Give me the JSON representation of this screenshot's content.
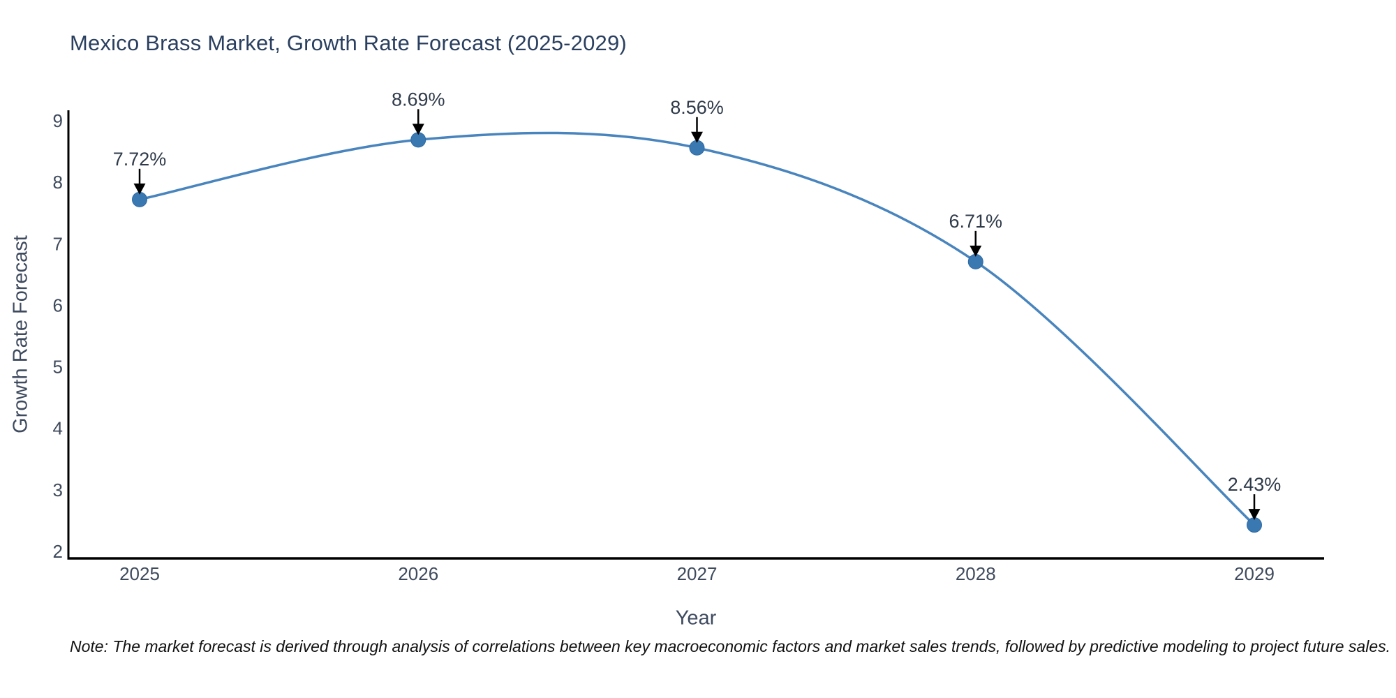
{
  "chart_data": {
    "type": "line",
    "line_shape": "spline",
    "title": "Mexico Brass Market, Growth Rate Forecast (2025-2029)",
    "xlabel": "Year",
    "ylabel": "Growth Rate Forecast",
    "x": [
      2025,
      2026,
      2027,
      2028,
      2029
    ],
    "values": [
      7.72,
      8.69,
      8.56,
      6.71,
      2.43
    ],
    "point_labels": [
      "7.72%",
      "8.69%",
      "8.56%",
      "6.71%",
      "2.43%"
    ],
    "yticks": [
      9,
      8,
      7,
      6,
      5,
      4,
      3,
      2
    ],
    "ylim": [
      2,
      9
    ],
    "grid": false,
    "legend": false,
    "line_color": "#4884bd",
    "marker_color": "#3a78b2",
    "marker_edge_color": "#2e6aa4",
    "axis_color": "#000000",
    "arrow_color": "#000000",
    "title_color": "#2a3f5f",
    "tick_color": "#3f4a5c"
  },
  "note": "Note: The market forecast is derived through analysis of correlations between key macroeconomic factors and market sales trends, followed by predictive modeling to project future sales."
}
